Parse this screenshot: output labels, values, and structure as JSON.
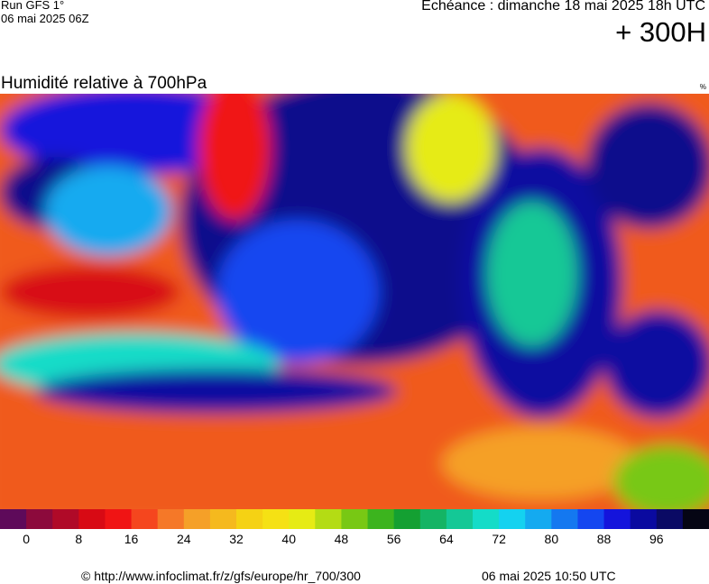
{
  "header": {
    "run": "Run GFS 1°",
    "run_date": "06 mai 2025 06Z",
    "valid": "Echéance : dimanche 18 mai 2025 18h UTC",
    "lead": "+ 300H"
  },
  "map": {
    "title": "Humidité relative à 700hPa",
    "unit": "%"
  },
  "legend": {
    "ticks": [
      0,
      8,
      16,
      24,
      32,
      40,
      48,
      56,
      64,
      72,
      80,
      88,
      96
    ],
    "colors": [
      "#5e0a5a",
      "#8c0a3c",
      "#b00a28",
      "#d80a14",
      "#f01414",
      "#f5461e",
      "#f57828",
      "#f5a028",
      "#f5b91e",
      "#f5d214",
      "#f5e114",
      "#e6eb14",
      "#b4dc14",
      "#78c814",
      "#3cb41e",
      "#14a032",
      "#14b464",
      "#14c896",
      "#14dcc8",
      "#14d2f0",
      "#14aaf0",
      "#1478f0",
      "#1446f0",
      "#1414dc",
      "#0a0aa0",
      "#0a0a64",
      "#050514"
    ]
  },
  "footer": {
    "source": "© http://www.infoclimat.fr/z/gfs/europe/hr_700/300",
    "made": "06 mai 2025 10:50 UTC"
  }
}
